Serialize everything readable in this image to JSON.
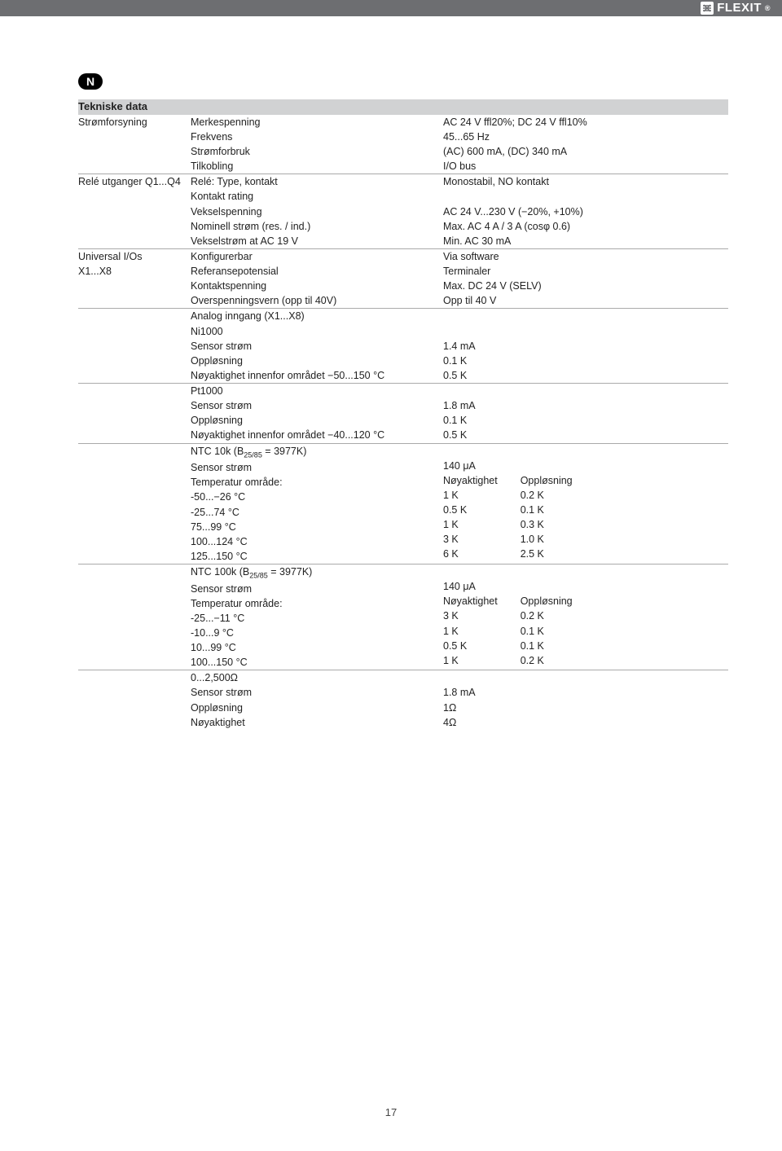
{
  "brand": "FLEXIT",
  "lang_badge": "N",
  "page_number": "17",
  "colors": {
    "topbar": "#6d6e71",
    "header_bg": "#d1d2d3",
    "border": "#aaaaaa",
    "text": "#222222",
    "page_bg": "#ffffff"
  },
  "table": {
    "title": "Tekniske data",
    "rows": [
      {
        "c1": "Strømforsyning",
        "c2": "Merkespenning\nFrekvens\nStrømforbruk\nTilkobling",
        "c3": "AC 24 V ffl20%; DC 24 V ffl10%\n45...65 Hz\n(AC) 600 mA, (DC) 340 mA\nI/O bus"
      },
      {
        "c1": "Relé utganger Q1...Q4",
        "c2": "Relé: Type, kontakt\nKontakt rating\nVekselspenning\nNominell strøm (res. / ind.)\nVekselstrøm at AC 19 V",
        "c3": "Monostabil, NO kontakt\n\nAC 24 V...230 V (−20%, +10%)\nMax. AC 4 A / 3 A (cosφ 0.6)\nMin. AC 30 mA"
      },
      {
        "c1": "Universal I/Os\nX1...X8",
        "c2": "Konfigurerbar\nReferansepotensial\nKontaktspenning\nOverspenningsvern (opp til 40V)",
        "c3": "Via software\nTerminaler\nMax. DC 24 V (SELV)\nOpp til 40 V"
      },
      {
        "c1": "",
        "c2": "Analog inngang (X1...X8)\nNi1000\nSensor strøm\nOppløsning\nNøyaktighet innenfor området −50...150 °C",
        "c3": "\n\n1.4 mA\n0.1 K\n0.5 K"
      },
      {
        "c1": "",
        "c2": "Pt1000\nSensor strøm\nOppløsning\nNøyaktighet innenfor området −40...120 °C",
        "c3": "\n1.8 mA\n0.1 K\n0.5 K"
      },
      {
        "c1": "",
        "c2_html": "NTC 10k (B<span class=\"sub\">25/85</span> = 3977K)\nSensor strøm\nTemperatur område:\n-50...−26 °C\n-25...74 °C\n75...99 °C\n100...124 °C\n125...150 °C",
        "c3_two": {
          "left": "\n140 μA\nNøyaktighet\n1 K\n0.5 K\n1 K\n3 K\n6 K",
          "right": "\n\nOppløsning\n0.2 K\n0.1 K\n0.3 K\n1.0 K\n2.5 K"
        }
      },
      {
        "c1": "",
        "c2_html": "NTC 100k (B<span class=\"sub\">25/85</span> = 3977K)\nSensor strøm\nTemperatur område:\n-25...−11 °C\n-10...9 °C\n10...99 °C\n100...150 °C",
        "c3_two": {
          "left": "\n140 μA\nNøyaktighet\n3 K\n1 K\n0.5 K\n1 K",
          "right": "\n\nOppløsning\n0.2 K\n0.1 K\n0.1 K\n0.2 K"
        }
      },
      {
        "c1": "",
        "c2": "0...2,500Ω\nSensor strøm\nOppløsning\nNøyaktighet",
        "c3": "\n1.8 mA\n1Ω\n4Ω"
      }
    ]
  }
}
